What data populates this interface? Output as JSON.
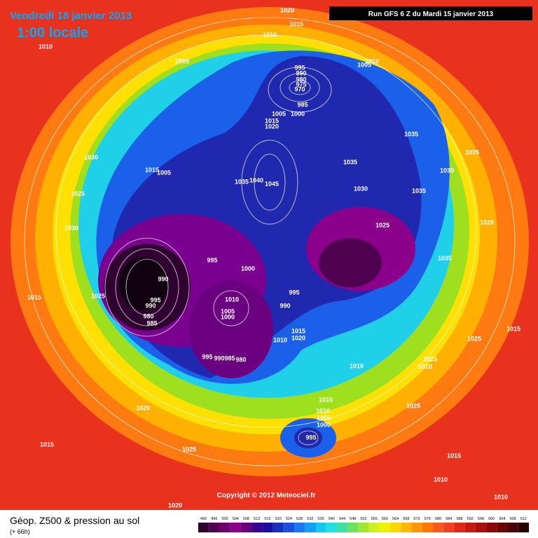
{
  "header": {
    "date": "Vendredi 18 janvier 2013",
    "time": "1:00 locale",
    "run": "Run GFS 6 Z du Mardi 15 janvier 2013"
  },
  "map": {
    "pressure_labels": [
      1020,
      1015,
      1010,
      1010,
      1005,
      1010,
      1005,
      995,
      990,
      980,
      975,
      970,
      985,
      1005,
      1000,
      1015,
      1020,
      1035,
      1035,
      1030,
      1015,
      1005,
      1035,
      1035,
      1040,
      1035,
      1045,
      1030,
      1035,
      1025,
      1025,
      1020,
      1030,
      995,
      1000,
      1035,
      990,
      1025,
      1015,
      995,
      990,
      1010,
      995,
      990,
      1005,
      1000,
      980,
      985,
      1015,
      1020,
      1010,
      1015,
      1025,
      995,
      990,
      985,
      980,
      1010,
      1015,
      1010,
      1015,
      1025,
      1020,
      1010,
      1005,
      1000,
      995,
      1015,
      1025,
      1015,
      1010,
      1010,
      1020
    ],
    "copyright": "Copyright © 2012 Meteociel.fr"
  },
  "footer": {
    "title": "Géop. Z500 & pression au sol",
    "lead": "(+ 66h)"
  },
  "scale": {
    "values": [
      492,
      496,
      500,
      504,
      508,
      512,
      516,
      520,
      524,
      528,
      532,
      536,
      540,
      544,
      548,
      552,
      556,
      560,
      564,
      568,
      572,
      576,
      580,
      584,
      588,
      592,
      596,
      600,
      604,
      608,
      612
    ],
    "colors": [
      "#300030",
      "#500050",
      "#700070",
      "#8a008a",
      "#6a007a",
      "#3a0090",
      "#1a10a0",
      "#1830c0",
      "#1a50e0",
      "#1a78f0",
      "#10a0f8",
      "#10c8f0",
      "#20e0e0",
      "#40e0a0",
      "#70e060",
      "#a0e830",
      "#d0f020",
      "#f0f000",
      "#ffd800",
      "#ffb800",
      "#ff9800",
      "#ff7800",
      "#f85820",
      "#f04020",
      "#e02818",
      "#c81810",
      "#a81008",
      "#880808",
      "#680404",
      "#480202",
      "#280000"
    ]
  }
}
